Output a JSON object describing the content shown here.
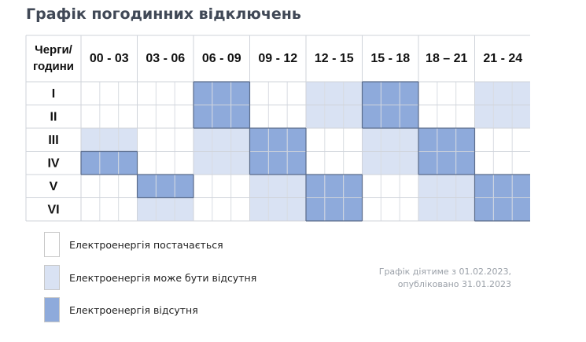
{
  "title": "Графік погодинних відключень",
  "table": {
    "corner_line1": "Черги/",
    "corner_line2": "години",
    "columns": [
      "00 - 03",
      "03 - 06",
      "06 - 09",
      "09 - 12",
      "12 - 15",
      "15 - 18",
      "18 – 21",
      "21 - 24"
    ],
    "rows": [
      {
        "label": "I",
        "states": [
          0,
          0,
          2,
          0,
          1,
          2,
          0,
          1
        ]
      },
      {
        "label": "II",
        "states": [
          0,
          0,
          2,
          0,
          1,
          2,
          0,
          1
        ]
      },
      {
        "label": "III",
        "states": [
          1,
          0,
          1,
          2,
          0,
          1,
          2,
          0
        ]
      },
      {
        "label": "IV",
        "states": [
          2,
          0,
          1,
          2,
          0,
          1,
          2,
          0
        ]
      },
      {
        "label": "V",
        "states": [
          0,
          2,
          0,
          1,
          2,
          0,
          1,
          2
        ]
      },
      {
        "label": "VI",
        "states": [
          0,
          1,
          0,
          1,
          2,
          0,
          1,
          2
        ]
      }
    ]
  },
  "state_colors": [
    "#ffffff",
    "#d9e2f3",
    "#8eaadb"
  ],
  "legend": [
    {
      "label": "Електроенергія постачається",
      "color": "#ffffff"
    },
    {
      "label": "Електроенергія може бути відсутня",
      "color": "#d9e2f3"
    },
    {
      "label": "Електроенергія відсутня",
      "color": "#8eaadb"
    }
  ],
  "note": {
    "line1": "Графік діятиме з 01.02.2023,",
    "line2": "опубліковано 31.01.2023"
  }
}
